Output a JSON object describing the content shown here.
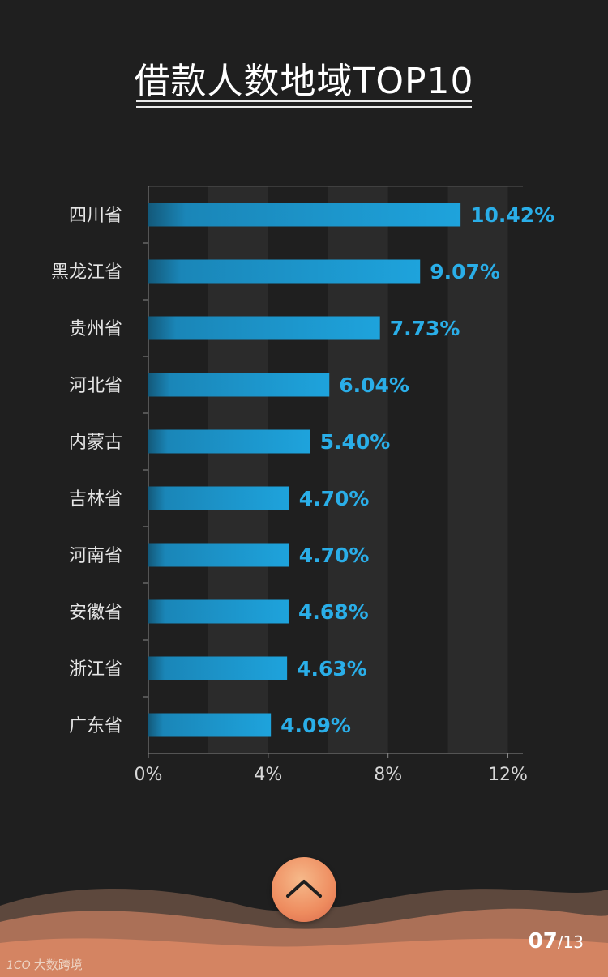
{
  "title": "借款人数地域TOP10",
  "chart_data": {
    "type": "bar",
    "orientation": "horizontal",
    "title": "借款人数地域TOP10",
    "categories": [
      "四川省",
      "黑龙江省",
      "贵州省",
      "河北省",
      "内蒙古",
      "吉林省",
      "河南省",
      "安徽省",
      "浙江省",
      "广东省"
    ],
    "values": [
      10.42,
      9.07,
      7.73,
      6.04,
      5.4,
      4.7,
      4.7,
      4.68,
      4.63,
      4.09
    ],
    "value_labels": [
      "10.42%",
      "9.07%",
      "7.73%",
      "6.04%",
      "5.40%",
      "4.70%",
      "4.70%",
      "4.68%",
      "4.63%",
      "4.09%"
    ],
    "xlim": [
      0,
      12.5
    ],
    "x_ticks": [
      0,
      4,
      8,
      12
    ],
    "x_tick_labels": [
      "0%",
      "4%",
      "8%",
      "12%"
    ],
    "xlabel": "",
    "ylabel": "",
    "grid": "alternating vertical bands",
    "colors": {
      "bar": "#1e9fd6",
      "bar_dark": "#13597a",
      "value_label": "#2aaee8",
      "band": "#2b2b2b",
      "axis": "#8a8a8a"
    }
  },
  "page": {
    "current": "07",
    "separator": "/",
    "total": "13"
  },
  "watermark": {
    "logo": "1CO",
    "text": "大数跨境"
  },
  "scroll_up_icon": "chevron-up-icon"
}
